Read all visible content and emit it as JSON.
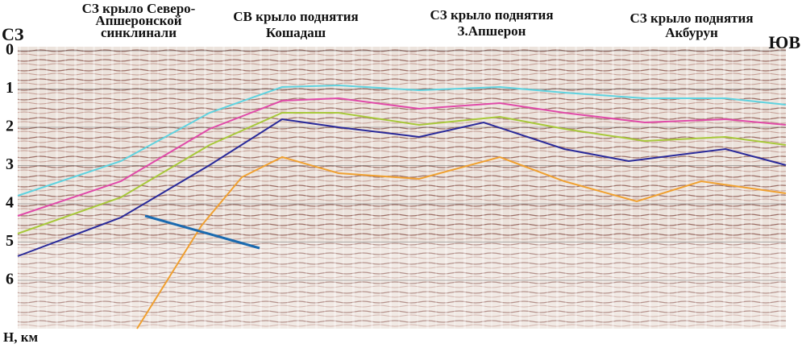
{
  "header": {
    "labels": [
      {
        "lines": [
          "СЗ крыло Северо-",
          "Апшеронской",
          "синклинали"
        ]
      },
      {
        "lines": [
          "СВ крыло поднятия",
          "Кошадаш"
        ]
      },
      {
        "lines": [
          "СЗ крыло поднятия",
          "З.Апшерон"
        ]
      },
      {
        "lines": [
          "СЗ крыло поднятия",
          "Акбурун"
        ]
      }
    ]
  },
  "left_label": "СЗ",
  "right_label": "ЮВ",
  "depth_axis": {
    "ticks": [
      0,
      1,
      2,
      3,
      4,
      5,
      6
    ],
    "label": "Н, км"
  }
}
